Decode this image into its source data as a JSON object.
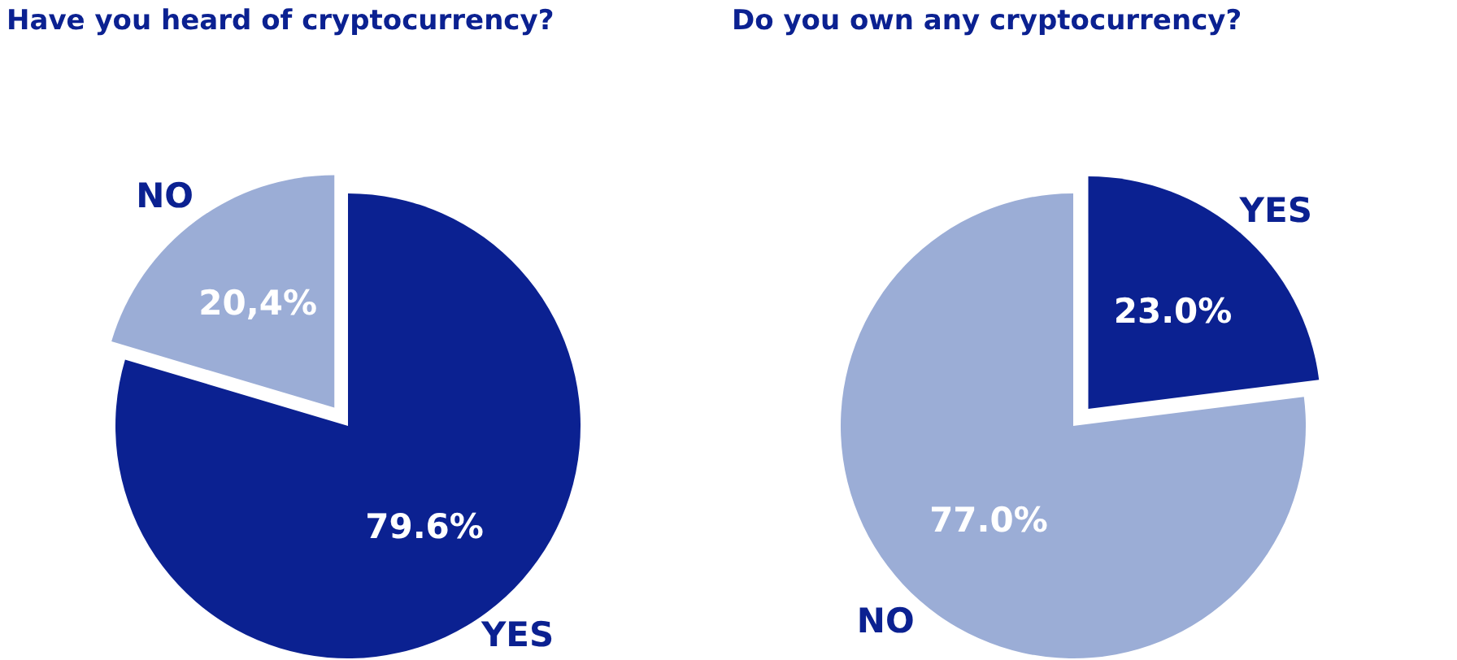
{
  "chart_data": [
    {
      "type": "pie",
      "title": "Have you heard of cryptocurrency?",
      "categories": [
        "YES",
        "NO"
      ],
      "values": [
        79.6,
        20.4
      ],
      "colors": [
        "#0b2191",
        "#9badd6"
      ],
      "value_labels": [
        "79.6%",
        "20,4%"
      ]
    },
    {
      "type": "pie",
      "title": "Do you own any cryptocurrency?",
      "categories": [
        "YES",
        "NO"
      ],
      "values": [
        23.0,
        77.0
      ],
      "colors": [
        "#0b2191",
        "#9badd6"
      ],
      "value_labels": [
        "23.0%",
        "77.0%"
      ]
    }
  ]
}
